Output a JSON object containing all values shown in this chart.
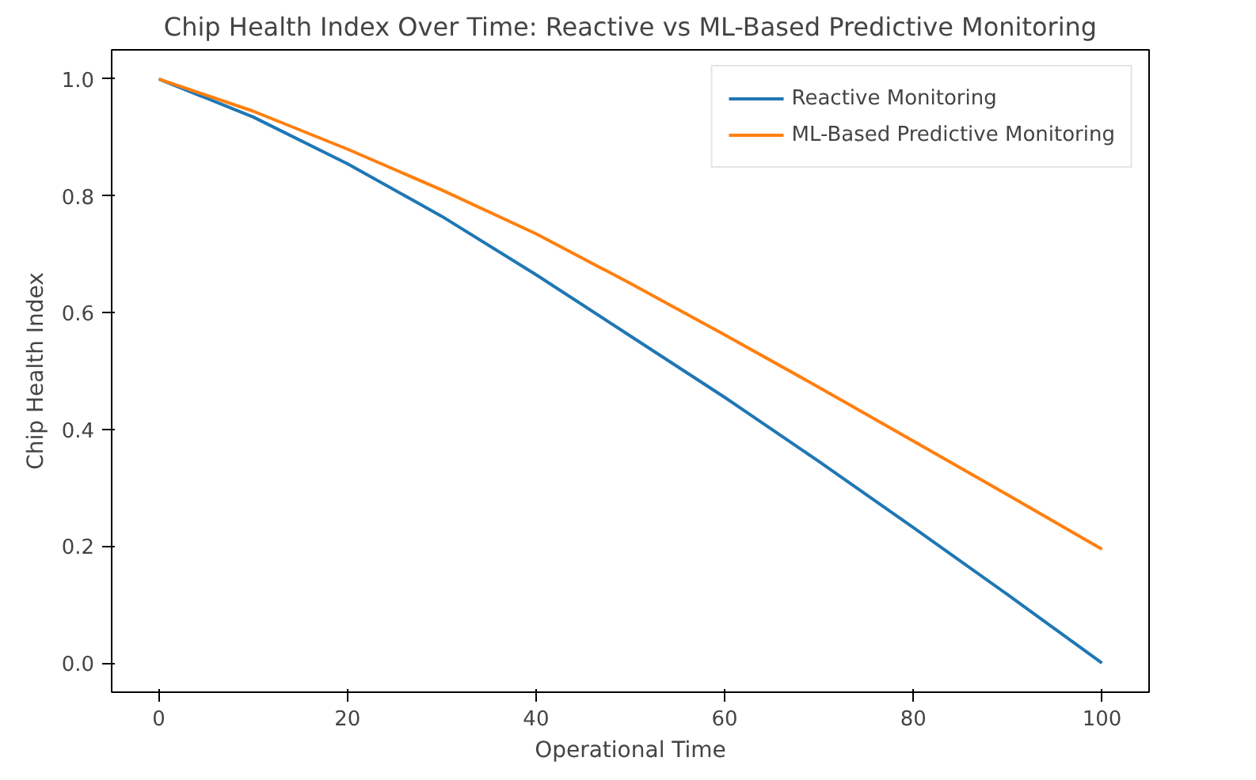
{
  "chart_data": {
    "type": "line",
    "title": "Chip Health Index Over Time: Reactive vs ML-Based Predictive Monitoring",
    "xlabel": "Operational Time",
    "ylabel": "Chip Health Index",
    "x": [
      0,
      10,
      20,
      30,
      40,
      50,
      60,
      70,
      80,
      90,
      100
    ],
    "series": [
      {
        "name": "Reactive Monitoring",
        "color": "#1f77b4",
        "values": [
          1.0,
          0.935,
          0.855,
          0.765,
          0.665,
          0.56,
          0.455,
          0.345,
          0.232,
          0.117,
          0.0
        ]
      },
      {
        "name": "ML-Based Predictive Monitoring",
        "color": "#ff7f0e",
        "values": [
          1.0,
          0.945,
          0.88,
          0.81,
          0.735,
          0.65,
          0.562,
          0.472,
          0.38,
          0.288,
          0.195
        ]
      }
    ],
    "xlim": [
      -5,
      105
    ],
    "ylim": [
      -0.05,
      1.05
    ],
    "xticks": [
      0,
      20,
      40,
      60,
      80,
      100
    ],
    "yticks": [
      {
        "value": 0,
        "label": "0.0"
      },
      {
        "value": 0.2,
        "label": "0.2"
      },
      {
        "value": 0.4,
        "label": "0.4"
      },
      {
        "value": 0.6,
        "label": "0.6"
      },
      {
        "value": 0.8,
        "label": "0.8"
      },
      {
        "value": 1.0,
        "label": "1.0"
      }
    ],
    "legend": "top right",
    "grid": false,
    "marker": "none",
    "line_style": "solid"
  }
}
